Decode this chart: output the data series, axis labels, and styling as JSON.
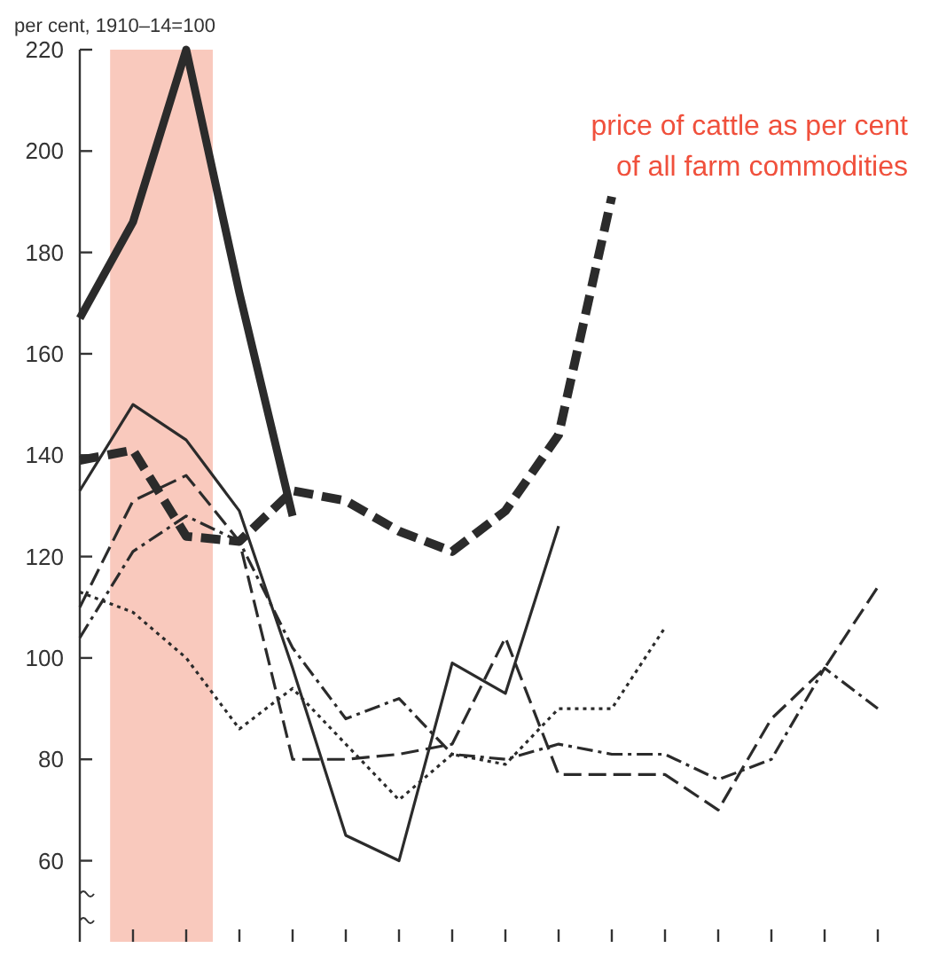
{
  "chart_data": {
    "type": "line",
    "ylabel": "per cent, 1910–14=100",
    "annotations": [
      "price of cattle as per cent\nof all farm commodities"
    ],
    "categories": [
      null,
      null,
      null,
      null,
      null,
      null,
      null,
      null,
      null,
      null,
      null,
      null,
      null,
      null,
      null,
      null
    ],
    "ylim": [
      44,
      220
    ],
    "yticks": [
      60,
      80,
      100,
      120,
      140,
      160,
      180,
      200,
      220
    ],
    "tick_labels": "y",
    "series": [
      {
        "color": "#2b2b2b",
        "line_style": "solid",
        "values": [
          167,
          186,
          220,
          172,
          128,
          null,
          null,
          null,
          null,
          null,
          null,
          null,
          null,
          null,
          null,
          null
        ]
      },
      {
        "color": "#2b2b2b",
        "line_style": "dashed",
        "values": [
          139,
          141,
          124,
          123,
          133,
          131,
          125,
          121,
          129,
          144,
          191,
          null,
          null,
          null,
          null,
          null
        ]
      },
      {
        "color": "#2b2b2b",
        "line_style": "solid",
        "values": [
          133,
          150,
          143,
          129,
          98,
          65,
          60,
          99,
          93,
          126,
          null,
          null,
          null,
          null,
          null,
          null
        ]
      },
      {
        "color": "#2b2b2b",
        "line_style": "dashed",
        "values": [
          110,
          131,
          136,
          123,
          80,
          80,
          81,
          83,
          104,
          77,
          77,
          77,
          70,
          88,
          98,
          114
        ]
      },
      {
        "color": "#2b2b2b",
        "line_style": "dashdot",
        "values": [
          104,
          121,
          128,
          123,
          102,
          88,
          92,
          81,
          80,
          83,
          81,
          81,
          76,
          80,
          98,
          90
        ]
      },
      {
        "color": "#2b2b2b",
        "line_style": "dotted",
        "values": [
          113,
          109,
          100,
          86,
          94,
          83,
          72,
          81,
          79,
          90,
          90,
          106,
          null,
          null,
          null,
          null
        ]
      }
    ]
  }
}
